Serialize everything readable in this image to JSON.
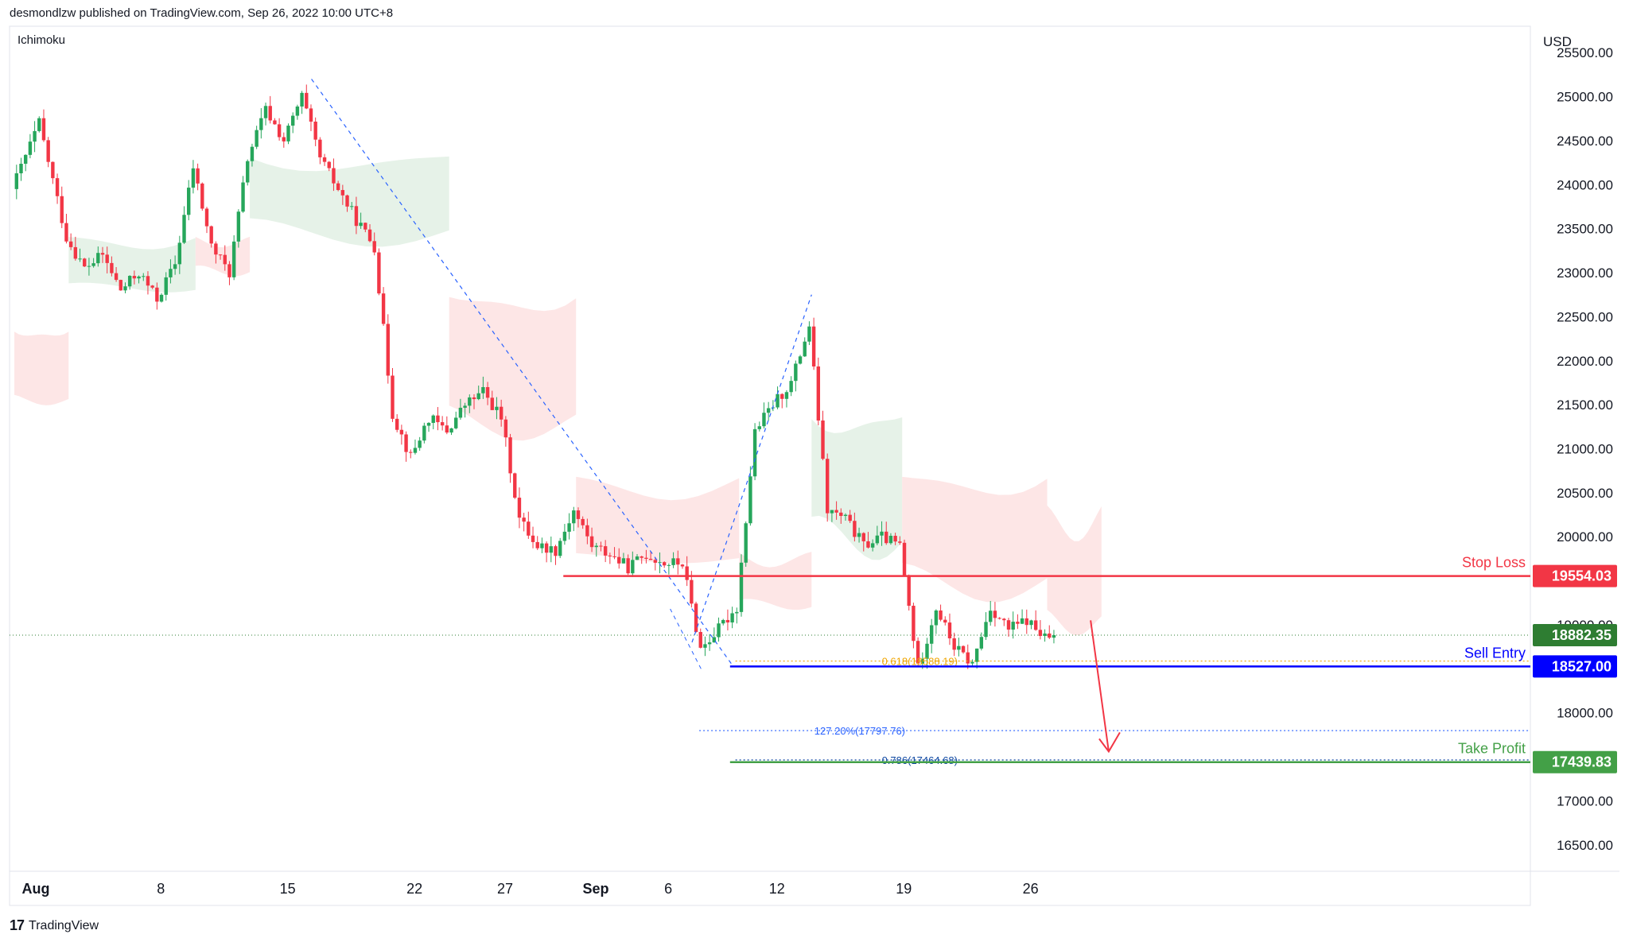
{
  "header": {
    "published": "desmondlzw published on TradingView.com, Sep 26, 2022 10:00 UTC+8"
  },
  "footer": {
    "brand_logo": "17",
    "brand_name": "TradingView"
  },
  "chart_data": {
    "type": "candlestick",
    "indicator": "Ichimoku",
    "currency": "USD",
    "ylim": [
      16200,
      25800
    ],
    "y_ticks": [
      {
        "v": 25500,
        "label": "25500.00"
      },
      {
        "v": 25000,
        "label": "25000.00"
      },
      {
        "v": 24500,
        "label": "24500.00"
      },
      {
        "v": 24000,
        "label": "24000.00"
      },
      {
        "v": 23500,
        "label": "23500.00"
      },
      {
        "v": 23000,
        "label": "23000.00"
      },
      {
        "v": 22500,
        "label": "22500.00"
      },
      {
        "v": 22000,
        "label": "22000.00"
      },
      {
        "v": 21500,
        "label": "21500.00"
      },
      {
        "v": 21000,
        "label": "21000.00"
      },
      {
        "v": 20500,
        "label": "20500.00"
      },
      {
        "v": 20000,
        "label": "20000.00"
      },
      {
        "v": 19000,
        "label": "19000.00"
      },
      {
        "v": 18000,
        "label": "18000.00"
      },
      {
        "v": 17000,
        "label": "17000.00"
      },
      {
        "v": 16500,
        "label": "16500.00"
      }
    ],
    "x_ticks": [
      {
        "d": 1.1,
        "label": "Aug"
      },
      {
        "d": 8,
        "label": "8"
      },
      {
        "d": 15,
        "label": "15"
      },
      {
        "d": 22,
        "label": "22"
      },
      {
        "d": 27,
        "label": "27"
      },
      {
        "d": 32,
        "label": "Sep"
      },
      {
        "d": 36,
        "label": "6"
      },
      {
        "d": 42,
        "label": "12"
      },
      {
        "d": 49,
        "label": "19"
      },
      {
        "d": 56,
        "label": "26"
      }
    ],
    "last_price": {
      "value": 18882.35,
      "label": "18882.35",
      "color": "#2e7d32"
    },
    "levels": [
      {
        "name": "Stop Loss",
        "value": 19554.03,
        "label": "19554.03",
        "color": "#f23645",
        "from_day": 30.3
      },
      {
        "name": "Sell Entry",
        "value": 18527.0,
        "label": "18527.00",
        "color": "#0000ff",
        "from_day": 39.5
      },
      {
        "name": "Take Profit",
        "value": 17439.83,
        "label": "17439.83",
        "color": "#43a047",
        "from_day": 39.5
      }
    ],
    "fib_labels": [
      {
        "text": "0.618(18588.19)",
        "value": 18588.19,
        "color": "#f0a500"
      },
      {
        "text": "127.20%(17797.76)",
        "value": 17797.76,
        "color": "#2962ff"
      },
      {
        "text": "0.786(17464.68)",
        "value": 17464.68,
        "color": "#0d47a1"
      }
    ],
    "trendlines": [
      {
        "from": [
          16.4,
          25200
        ],
        "to": [
          39.6,
          18550
        ],
        "color": "#2962ff"
      },
      {
        "from": [
          37.4,
          18800
        ],
        "to": [
          44.0,
          22750
        ],
        "color": "#2962ff"
      }
    ],
    "projection_arrow": {
      "from": [
        59.4,
        19050
      ],
      "via": [
        60.4,
        17560
      ],
      "color": "#f23645"
    },
    "anchors": [
      [
        0,
        23950
      ],
      [
        1.5,
        24700
      ],
      [
        3,
        23400
      ],
      [
        4,
        23050
      ],
      [
        5,
        23200
      ],
      [
        6,
        22800
      ],
      [
        7,
        23000
      ],
      [
        8,
        22700
      ],
      [
        9,
        23100
      ],
      [
        10,
        24200
      ],
      [
        11,
        23300
      ],
      [
        12,
        23000
      ],
      [
        13,
        24300
      ],
      [
        14,
        24850
      ],
      [
        15,
        24500
      ],
      [
        16,
        25000
      ],
      [
        17,
        24300
      ],
      [
        18,
        23950
      ],
      [
        19,
        23600
      ],
      [
        20,
        23300
      ],
      [
        21,
        21400
      ],
      [
        22,
        20900
      ],
      [
        23,
        21350
      ],
      [
        24,
        21200
      ],
      [
        25,
        21500
      ],
      [
        26,
        21650
      ],
      [
        27,
        21350
      ],
      [
        28,
        20200
      ],
      [
        29,
        19900
      ],
      [
        30,
        19850
      ],
      [
        31,
        20300
      ],
      [
        32,
        19900
      ],
      [
        33,
        19800
      ],
      [
        34,
        19650
      ],
      [
        35,
        19800
      ],
      [
        36,
        19700
      ],
      [
        37,
        19700
      ],
      [
        38,
        18730
      ],
      [
        39,
        18950
      ],
      [
        40,
        19200
      ],
      [
        41,
        21200
      ],
      [
        42,
        21500
      ],
      [
        43,
        21750
      ],
      [
        44,
        22400
      ],
      [
        45,
        20300
      ],
      [
        46,
        20200
      ],
      [
        47,
        19900
      ],
      [
        48,
        20000
      ],
      [
        49,
        19900
      ],
      [
        50,
        18500
      ],
      [
        51,
        19200
      ],
      [
        52,
        18750
      ],
      [
        53,
        18550
      ],
      [
        54,
        19200
      ],
      [
        55,
        18950
      ],
      [
        56,
        19050
      ],
      [
        57,
        18850
      ]
    ],
    "cloud": [
      {
        "from": 0,
        "to": 3,
        "a": 22550,
        "b": 21500,
        "kind": "bear"
      },
      {
        "from": 3,
        "to": 10,
        "a": 23500,
        "b": 22800,
        "kind": "bull"
      },
      {
        "from": 10,
        "to": 13,
        "a": 23450,
        "b": 23000,
        "kind": "bear"
      },
      {
        "from": 13,
        "to": 24,
        "a": 24500,
        "b": 23400,
        "kind": "bull"
      },
      {
        "from": 24,
        "to": 31,
        "a": 23100,
        "b": 21200,
        "kind": "bear"
      },
      {
        "from": 31,
        "to": 40,
        "a": 20800,
        "b": 19700,
        "kind": "bear"
      },
      {
        "from": 40,
        "to": 44,
        "a": 19900,
        "b": 19200,
        "kind": "bear"
      },
      {
        "from": 44,
        "to": 49,
        "a": 21700,
        "b": 19900,
        "kind": "bull"
      },
      {
        "from": 49,
        "to": 57,
        "a": 20950,
        "b": 19400,
        "kind": "bear"
      },
      {
        "from": 57,
        "to": 60,
        "a": 20500,
        "b": 18950,
        "kind": "bear"
      }
    ],
    "colors": {
      "up": "#26a65b",
      "down": "#f23645",
      "bull_cloud": "#e3f1e6",
      "bear_cloud": "#fde3e3"
    }
  }
}
